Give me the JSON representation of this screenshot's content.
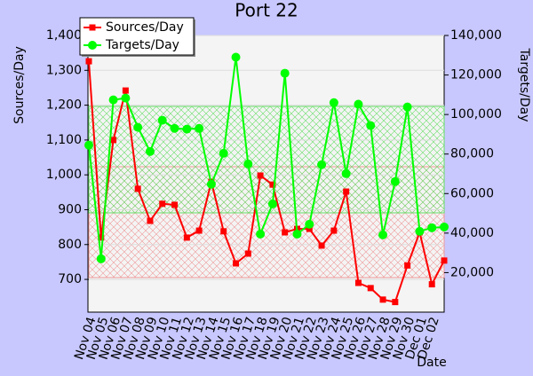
{
  "chart_data": {
    "type": "line",
    "title": "Port 22",
    "x_label": "Date",
    "y_label": "Sources/Day",
    "y2_label": "Targets/Day",
    "categories": [
      "Nov 04",
      "Nov 05",
      "Nov 06",
      "Nov 07",
      "Nov 08",
      "Nov 09",
      "Nov 10",
      "Nov 11",
      "Nov 12",
      "Nov 13",
      "Nov 14",
      "Nov 15",
      "Nov 16",
      "Nov 17",
      "Nov 18",
      "Nov 19",
      "Nov 20",
      "Nov 21",
      "Nov 22",
      "Nov 23",
      "Nov 24",
      "Nov 25",
      "Nov 26",
      "Nov 27",
      "Nov 28",
      "Nov 29",
      "Nov 30",
      "Dec 01",
      "Dec 02",
      null
    ],
    "series": [
      {
        "name": "Sources/Day",
        "color": "#ff0000",
        "marker": "square",
        "axis": "y",
        "values": [
          1326,
          820,
          1100,
          1242,
          960,
          868,
          917,
          914,
          820,
          840,
          980,
          838,
          746,
          774,
          998,
          972,
          835,
          845,
          845,
          797,
          840,
          952,
          690,
          675,
          642,
          635,
          740,
          835,
          686,
          754
        ]
      },
      {
        "name": "Targets/Day",
        "color": "#00ff00",
        "marker": "circle",
        "axis": "y2",
        "values": [
          84500,
          27000,
          107400,
          108300,
          93500,
          81300,
          97100,
          93000,
          92600,
          93000,
          64700,
          80400,
          129000,
          75000,
          39500,
          54800,
          120900,
          39500,
          44500,
          74600,
          106000,
          70100,
          105200,
          94400,
          39100,
          66100,
          103800,
          40900,
          42700,
          43100
        ]
      }
    ],
    "ylim": [
      606,
      1400
    ],
    "yticks": [
      700,
      800,
      900,
      {
        "value": 1000,
        "label": "1,000"
      },
      {
        "value": 1100,
        "label": "1,100"
      },
      {
        "value": 1200,
        "label": "1,200"
      },
      {
        "value": 1300,
        "label": "1,300"
      },
      {
        "value": 1400,
        "label": "1,400"
      }
    ],
    "y2lim": [
      0,
      140000
    ],
    "y2ticks": [
      {
        "value": 20000,
        "label": "20,000"
      },
      {
        "value": 40000,
        "label": "40,000"
      },
      {
        "value": 60000,
        "label": "60,000"
      },
      {
        "value": 80000,
        "label": "80,000"
      },
      {
        "value": 100000,
        "label": "100,000"
      },
      {
        "value": 120000,
        "label": "120,000"
      },
      {
        "value": 140000,
        "label": "140,000"
      }
    ],
    "grid": true,
    "legend": "upper left"
  }
}
